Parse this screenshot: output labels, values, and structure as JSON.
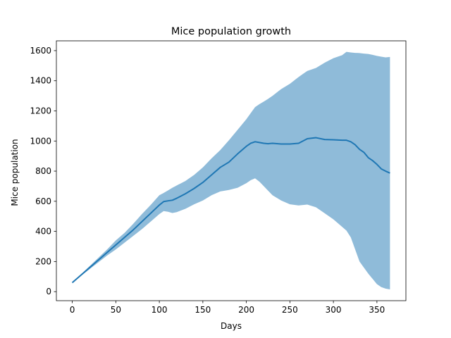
{
  "chart_data": {
    "type": "line",
    "title": "Mice population growth",
    "xlabel": "Days",
    "ylabel": "Mice population",
    "xlim": [
      -18.3,
      383.3
    ],
    "ylim": [
      -60,
      1665
    ],
    "xticks": [
      0,
      50,
      100,
      150,
      200,
      250,
      300,
      350
    ],
    "yticks": [
      0,
      200,
      400,
      600,
      800,
      1000,
      1200,
      1400,
      1600
    ],
    "grid": false,
    "legend": "none",
    "colors": {
      "line": "#1f77b4",
      "band": "#1f77b4",
      "band_opacity": 0.5
    },
    "series": [
      {
        "type": "line",
        "x": [
          0,
          10,
          20,
          30,
          40,
          50,
          60,
          70,
          80,
          90,
          100,
          105,
          110,
          115,
          120,
          130,
          140,
          150,
          160,
          170,
          180,
          190,
          200,
          205,
          210,
          215,
          220,
          225,
          230,
          240,
          250,
          260,
          265,
          270,
          280,
          290,
          300,
          310,
          315,
          320,
          325,
          330,
          335,
          340,
          345,
          350,
          355,
          360,
          365
        ],
        "y": [
          60,
          110,
          160,
          210,
          260,
          310,
          360,
          410,
          465,
          520,
          575,
          598,
          603,
          607,
          620,
          650,
          685,
          725,
          775,
          825,
          860,
          915,
          965,
          985,
          995,
          990,
          985,
          982,
          985,
          980,
          980,
          985,
          1000,
          1015,
          1022,
          1010,
          1008,
          1005,
          1005,
          995,
          975,
          945,
          925,
          890,
          870,
          845,
          815,
          800,
          787
        ]
      },
      {
        "type": "band",
        "x": [
          0,
          10,
          20,
          30,
          40,
          50,
          60,
          70,
          80,
          90,
          100,
          105,
          110,
          115,
          120,
          130,
          140,
          150,
          160,
          170,
          180,
          190,
          200,
          205,
          210,
          215,
          220,
          225,
          230,
          240,
          250,
          260,
          265,
          270,
          280,
          290,
          300,
          310,
          315,
          320,
          325,
          330,
          335,
          340,
          345,
          350,
          355,
          360,
          365
        ],
        "upper": [
          65,
          115,
          170,
          225,
          280,
          340,
          390,
          450,
          515,
          575,
          640,
          655,
          672,
          690,
          705,
          735,
          775,
          825,
          885,
          940,
          1005,
          1075,
          1145,
          1185,
          1225,
          1245,
          1262,
          1280,
          1300,
          1345,
          1380,
          1425,
          1445,
          1465,
          1485,
          1520,
          1550,
          1570,
          1592,
          1588,
          1585,
          1584,
          1580,
          1578,
          1572,
          1565,
          1560,
          1555,
          1558
        ],
        "lower": [
          55,
          105,
          150,
          195,
          240,
          280,
          325,
          370,
          415,
          465,
          515,
          535,
          530,
          522,
          528,
          550,
          580,
          605,
          640,
          665,
          675,
          690,
          720,
          740,
          752,
          730,
          700,
          670,
          640,
          605,
          580,
          572,
          575,
          578,
          560,
          520,
          480,
          430,
          405,
          360,
          280,
          200,
          160,
          120,
          85,
          50,
          30,
          20,
          15
        ]
      }
    ]
  }
}
